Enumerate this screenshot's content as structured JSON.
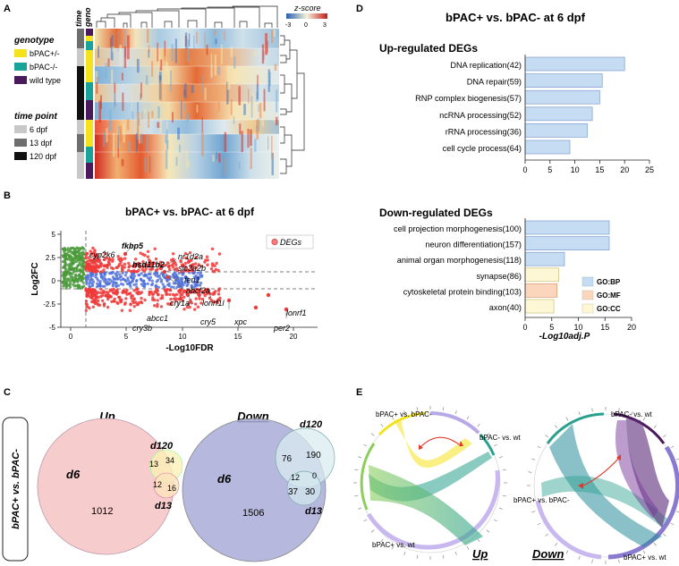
{
  "panels": {
    "A": {
      "letter": "A",
      "side_labels": [
        "time",
        "geno"
      ],
      "zscore": {
        "title": "z-score",
        "ticks": [
          "-3",
          "0",
          "3"
        ]
      },
      "legend_genotype": {
        "title": "genotype",
        "items": [
          {
            "label": "bPAC+/-",
            "color": "#f4e21c"
          },
          {
            "label": "bPAC-/-",
            "color": "#1aa39a"
          },
          {
            "label": "wild type",
            "color": "#4b1a5c"
          }
        ]
      },
      "legend_time": {
        "title": "time point",
        "items": [
          {
            "label": "6 dpf",
            "color": "#c8c8c8"
          },
          {
            "label": "13 dpf",
            "color": "#6e6e6e"
          },
          {
            "label": "120 dpf",
            "color": "#111111"
          }
        ]
      }
    },
    "B": {
      "letter": "B",
      "title": "bPAC+ vs. bPAC- at 6 dpf",
      "xlabel": "-Log10FDR",
      "ylabel": "Log2FC",
      "legend": "DEGs",
      "xticks": [
        "0",
        "5",
        "10",
        "15",
        "20"
      ],
      "yticks": [
        "5",
        "2.5",
        "0",
        "-2.5",
        "-5"
      ],
      "genes": [
        "cyp2k6",
        "fkbp5",
        "hsd11b2",
        "nr1d2a",
        "slc3a2b",
        "fen1",
        "abcf2a",
        "cry1a",
        "lonrf1l",
        "abcc1",
        "cry3b",
        "cry5",
        "xpc",
        "lonrf1",
        "per2"
      ]
    },
    "C": {
      "letter": "C",
      "side_label": "bPAC+ vs. bPAC-",
      "up": {
        "title": "Up",
        "d6": "d6",
        "d120": "d120",
        "d13": "d13",
        "n_d6": "1012",
        "n_d6_d120": "13",
        "n_d120": "34",
        "n_d6_d13": "12",
        "n_d13": "16"
      },
      "down": {
        "title": "Down",
        "d6": "d6",
        "d120": "d120",
        "d13": "d13",
        "n_d6": "1506",
        "n_d120": "190",
        "n_d6_d120": "76",
        "n_d120_d13": "0",
        "n_all": "12",
        "n_d6_d13": "37",
        "n_d13": "30"
      }
    },
    "D": {
      "letter": "D",
      "title": "bPAC+ vs. bPAC- at 6 dpf",
      "up": {
        "title": "Up-regulated DEGs",
        "xticks": [
          "0",
          "5",
          "10",
          "15",
          "20",
          "25"
        ],
        "xlim": [
          0,
          25
        ],
        "bars": [
          {
            "label": "DNA replication(42)",
            "value": 20,
            "cat": "BP"
          },
          {
            "label": "DNA repair(59)",
            "value": 15.5,
            "cat": "BP"
          },
          {
            "label": "RNP complex biogenesis(57)",
            "value": 15,
            "cat": "BP"
          },
          {
            "label": "ncRNA processing(52)",
            "value": 13.5,
            "cat": "BP"
          },
          {
            "label": "rRNA processing(36)",
            "value": 12.5,
            "cat": "BP"
          },
          {
            "label": "cell cycle process(64)",
            "value": 9,
            "cat": "BP"
          }
        ]
      },
      "down": {
        "title": "Down-regulated DEGs",
        "xlabel": "-Log10adj.P",
        "xticks": [
          "0",
          "5",
          "10",
          "15",
          "20"
        ],
        "xlim": [
          0,
          20
        ],
        "bars": [
          {
            "label": "cell projection morphogenesis(100)",
            "value": 15.8,
            "cat": "BP"
          },
          {
            "label": "neuron differentiation(157)",
            "value": 15.8,
            "cat": "BP"
          },
          {
            "label": "animal organ morphogenesis(118)",
            "value": 7.4,
            "cat": "BP"
          },
          {
            "label": "synapse(86)",
            "value": 6.3,
            "cat": "CC"
          },
          {
            "label": "cytoskeletal protein binding(103)",
            "value": 6,
            "cat": "MF"
          },
          {
            "label": "axon(40)",
            "value": 5.4,
            "cat": "CC"
          }
        ]
      },
      "legend": [
        {
          "label": "GO:BP",
          "color": "#c6dcf3"
        },
        {
          "label": "GO:MF",
          "color": "#fbd6bc"
        },
        {
          "label": "GO:CC",
          "color": "#fdf7d6"
        }
      ]
    },
    "E": {
      "letter": "E",
      "up": {
        "label": "Up",
        "c1": "bPAC+ vs. bPAC-",
        "c2": "bPAC- vs. wt",
        "c3": "bPAC+ vs. wt"
      },
      "down": {
        "label": "Down",
        "c1": "bPAC- vs. wt",
        "c2": "bPAC+ vs. bPAC-",
        "c3": "bPAC+ vs. wt"
      }
    }
  }
}
